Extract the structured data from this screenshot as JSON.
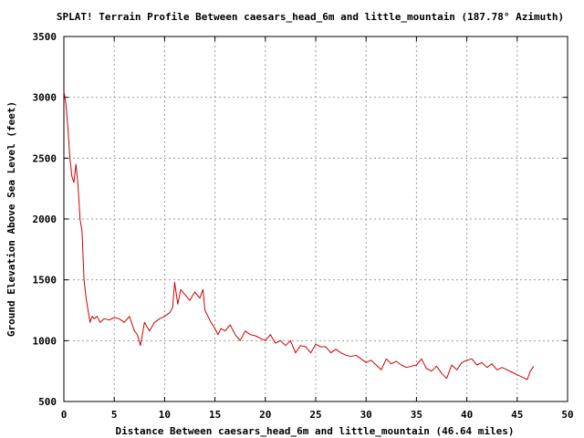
{
  "chart_data": {
    "type": "line",
    "title": "SPLAT! Terrain Profile Between caesars_head_6m and little_mountain (187.78° Azimuth)",
    "xlabel": "Distance Between caesars_head_6m and little_mountain (46.64 miles)",
    "ylabel": "Ground Elevation Above Sea Level (feet)",
    "xlim": [
      0,
      50
    ],
    "ylim": [
      500,
      3500
    ],
    "xticks": [
      0,
      5,
      10,
      15,
      20,
      25,
      30,
      35,
      40,
      45,
      50
    ],
    "yticks": [
      500,
      1000,
      1500,
      2000,
      2500,
      3000,
      3500
    ],
    "grid": true,
    "line_color": "#cc0000",
    "series": [
      {
        "x": [
          0,
          0.2,
          0.4,
          0.6,
          0.8,
          1.0,
          1.2,
          1.4,
          1.6,
          1.8,
          2.0,
          2.2,
          2.4,
          2.6,
          2.8,
          3.0,
          3.3,
          3.6,
          4.0,
          4.5,
          5.0,
          5.5,
          6.0,
          6.5,
          7.0,
          7.3,
          7.6,
          8.0,
          8.5,
          9.0,
          9.5,
          10.0,
          10.5,
          10.8,
          11.0,
          11.3,
          11.6,
          12.0,
          12.5,
          13.0,
          13.5,
          13.8,
          14.0,
          14.3,
          14.6,
          15.0,
          15.3,
          15.6,
          16.0,
          16.5,
          17.0,
          17.5,
          18.0,
          18.5,
          19.0,
          19.5,
          20.0,
          20.5,
          21.0,
          21.5,
          22.0,
          22.5,
          23.0,
          23.5,
          24.0,
          24.5,
          25.0,
          25.5,
          26.0,
          26.5,
          27.0,
          27.5,
          28.0,
          28.5,
          29.0,
          29.5,
          30.0,
          30.5,
          31.0,
          31.5,
          32.0,
          32.5,
          33.0,
          33.5,
          34.0,
          34.5,
          35.0,
          35.5,
          36.0,
          36.5,
          37.0,
          37.5,
          38.0,
          38.5,
          39.0,
          39.5,
          40.0,
          40.5,
          41.0,
          41.5,
          42.0,
          42.5,
          43.0,
          43.5,
          44.0,
          44.5,
          45.0,
          45.5,
          46.0,
          46.3,
          46.64
        ],
        "y": [
          3050,
          2950,
          2750,
          2500,
          2350,
          2300,
          2450,
          2280,
          2000,
          1900,
          1500,
          1350,
          1250,
          1150,
          1200,
          1180,
          1200,
          1150,
          1180,
          1170,
          1190,
          1180,
          1150,
          1200,
          1080,
          1050,
          960,
          1150,
          1080,
          1150,
          1180,
          1200,
          1230,
          1270,
          1480,
          1300,
          1420,
          1380,
          1330,
          1400,
          1350,
          1420,
          1250,
          1200,
          1150,
          1100,
          1050,
          1100,
          1080,
          1130,
          1050,
          1000,
          1080,
          1050,
          1040,
          1020,
          1000,
          1050,
          980,
          1000,
          960,
          1000,
          900,
          960,
          950,
          900,
          970,
          950,
          950,
          900,
          930,
          900,
          880,
          870,
          880,
          850,
          820,
          840,
          800,
          760,
          850,
          810,
          830,
          800,
          780,
          790,
          800,
          850,
          770,
          750,
          790,
          730,
          690,
          800,
          760,
          820,
          840,
          850,
          800,
          820,
          780,
          810,
          760,
          780,
          760,
          740,
          720,
          700,
          680,
          750,
          790
        ]
      }
    ]
  }
}
